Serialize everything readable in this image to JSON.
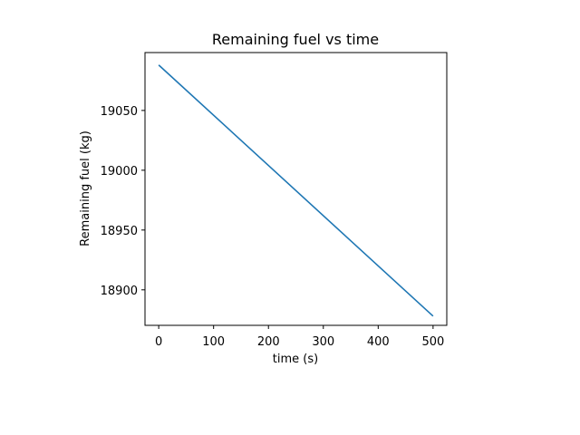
{
  "chart_data": {
    "type": "line",
    "title": "Remaining fuel vs time",
    "xlabel": "time (s)",
    "ylabel": "Remaining fuel (kg)",
    "xlim": [
      -25,
      525
    ],
    "ylim": [
      18870.3,
      19098.4
    ],
    "xticks": [
      0,
      100,
      200,
      300,
      400,
      500
    ],
    "xtick_labels": [
      "0",
      "100",
      "200",
      "300",
      "400",
      "500"
    ],
    "yticks": [
      18900,
      18950,
      19000,
      19050
    ],
    "ytick_labels": [
      "18900",
      "18950",
      "19000",
      "19050"
    ],
    "grid": false,
    "legend": false,
    "series": [
      {
        "color": "#1f77b4",
        "x": [
          0,
          500
        ],
        "y": [
          19088,
          18878
        ]
      }
    ]
  }
}
